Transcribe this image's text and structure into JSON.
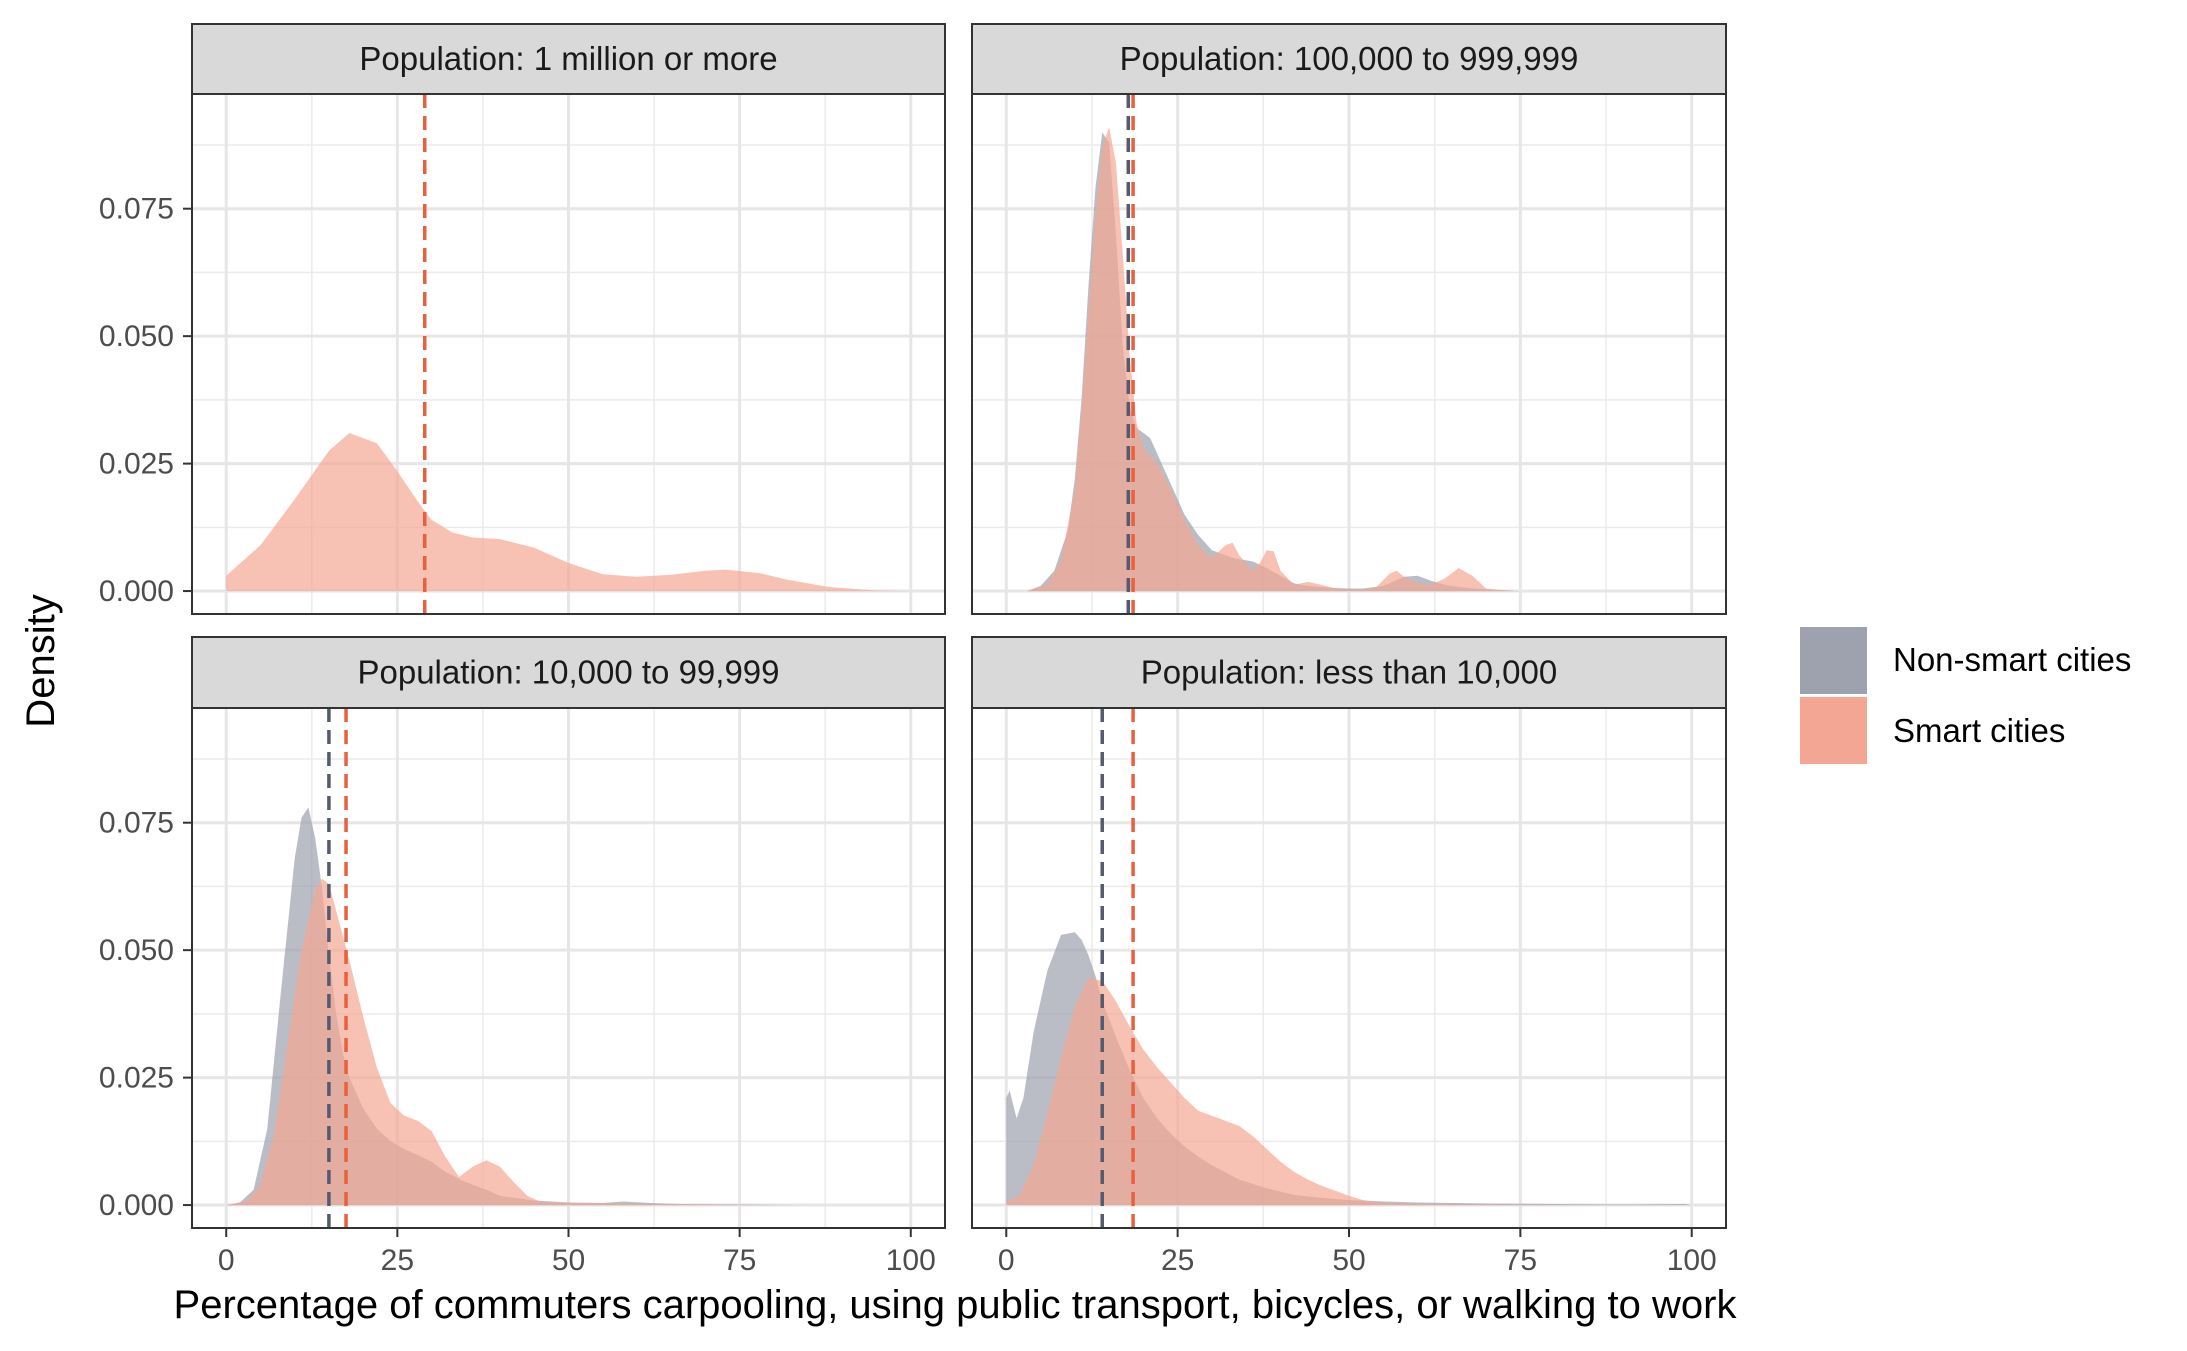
{
  "chart_data": {
    "type": "area",
    "xlabel": "Percentage of commuters carpooling, using public transport, bicycles, or walking to work",
    "ylabel": "Density",
    "xlim": [
      -5,
      105
    ],
    "ylim": [
      -0.0045,
      0.0975
    ],
    "x_ticks": [
      0,
      25,
      50,
      75,
      100
    ],
    "y_ticks": [
      0,
      0.025,
      0.05,
      0.075
    ],
    "x_tick_labels": [
      "0",
      "25",
      "50",
      "75",
      "100"
    ],
    "y_tick_labels": [
      "0.000",
      "0.025",
      "0.050",
      "0.075"
    ],
    "grid": true,
    "legend_position": "right",
    "legend": [
      {
        "key": "non_smart",
        "label": "Non-smart cities",
        "color": "#9ea1ae"
      },
      {
        "key": "smart",
        "label": "Smart cities",
        "color": "#f3a693"
      }
    ],
    "mean_line_colors": {
      "non_smart": "#555b6e",
      "smart": "#e8603c"
    },
    "panels": [
      {
        "title": "Population: 1 million or more",
        "smart_mean": 29,
        "non_smart_mean": null,
        "smart": {
          "x": [
            0,
            5,
            10,
            15,
            18,
            22,
            25,
            28,
            30,
            33,
            36,
            40,
            45,
            50,
            55,
            60,
            65,
            70,
            73,
            78,
            82,
            88,
            95,
            100
          ],
          "y": [
            0.003,
            0.009,
            0.018,
            0.0275,
            0.031,
            0.029,
            0.0235,
            0.0175,
            0.014,
            0.0115,
            0.0105,
            0.0102,
            0.0085,
            0.0055,
            0.0033,
            0.0028,
            0.0032,
            0.004,
            0.0042,
            0.0035,
            0.0022,
            0.0008,
            0.0001,
            0
          ]
        },
        "non_smart": null
      },
      {
        "title": "Population: 100,000 to 999,999",
        "smart_mean": 18.5,
        "non_smart_mean": 17.8,
        "smart": {
          "x": [
            3,
            6,
            8,
            10,
            11,
            12,
            13,
            14,
            15,
            16,
            17,
            18,
            19,
            20,
            22,
            24,
            26,
            28,
            30,
            32,
            33,
            34,
            36,
            37,
            38,
            39,
            40,
            42,
            44,
            46,
            48,
            50,
            52,
            54,
            56,
            57,
            58,
            60,
            62,
            64,
            66,
            68,
            70,
            74
          ],
          "y": [
            0,
            0.0012,
            0.006,
            0.02,
            0.036,
            0.055,
            0.074,
            0.087,
            0.091,
            0.084,
            0.066,
            0.046,
            0.033,
            0.028,
            0.025,
            0.02,
            0.014,
            0.009,
            0.0065,
            0.009,
            0.0095,
            0.007,
            0.004,
            0.0055,
            0.008,
            0.0078,
            0.004,
            0.0012,
            0.0018,
            0.0012,
            0.0005,
            0.0003,
            0.0003,
            0.0008,
            0.0035,
            0.004,
            0.0028,
            0.0015,
            0.0012,
            0.0025,
            0.0045,
            0.003,
            0.0005,
            0
          ]
        },
        "non_smart": {
          "x": [
            3,
            5,
            7,
            9,
            10,
            11,
            12,
            13,
            14,
            15,
            16,
            17,
            18,
            19,
            20,
            21,
            22,
            24,
            26,
            28,
            30,
            33,
            36,
            38,
            40,
            42,
            44,
            46,
            48,
            50,
            52,
            55,
            58,
            60,
            62,
            64,
            66,
            68,
            72,
            75
          ],
          "y": [
            0,
            0.001,
            0.004,
            0.012,
            0.022,
            0.038,
            0.06,
            0.079,
            0.09,
            0.088,
            0.07,
            0.048,
            0.036,
            0.032,
            0.031,
            0.03,
            0.027,
            0.021,
            0.015,
            0.011,
            0.008,
            0.0065,
            0.0058,
            0.0045,
            0.003,
            0.0015,
            0.001,
            0.0008,
            0.0006,
            0.0005,
            0.0005,
            0.001,
            0.0028,
            0.003,
            0.002,
            0.0012,
            0.0008,
            0.0005,
            0.0002,
            0
          ]
        }
      },
      {
        "title": "Population: 10,000 to 99,999",
        "smart_mean": 17.5,
        "non_smart_mean": 15,
        "smart": {
          "x": [
            0,
            3,
            5,
            7,
            9,
            11,
            13,
            14,
            15,
            16,
            17,
            18,
            20,
            22,
            24,
            26,
            28,
            30,
            32,
            34,
            36,
            38,
            40,
            42,
            44,
            46,
            50,
            55,
            60,
            70,
            80
          ],
          "y": [
            0,
            0.0008,
            0.004,
            0.014,
            0.032,
            0.05,
            0.062,
            0.064,
            0.063,
            0.058,
            0.053,
            0.048,
            0.037,
            0.027,
            0.02,
            0.0175,
            0.0165,
            0.0145,
            0.0095,
            0.0055,
            0.0075,
            0.0088,
            0.0075,
            0.0045,
            0.0018,
            0.0006,
            0.0004,
            0.0003,
            0.0002,
            0.0001,
            0
          ]
        },
        "non_smart": {
          "x": [
            0,
            2,
            4,
            6,
            8,
            10,
            11,
            12,
            13,
            14,
            15,
            16,
            17,
            18,
            20,
            22,
            24,
            26,
            28,
            30,
            32,
            35,
            38,
            40,
            45,
            50,
            55,
            58,
            62,
            66,
            75,
            85
          ],
          "y": [
            0,
            0.0005,
            0.003,
            0.015,
            0.042,
            0.068,
            0.076,
            0.078,
            0.072,
            0.062,
            0.049,
            0.038,
            0.03,
            0.025,
            0.019,
            0.015,
            0.0125,
            0.011,
            0.0098,
            0.0085,
            0.0065,
            0.0045,
            0.003,
            0.0018,
            0.0009,
            0.0005,
            0.0004,
            0.0007,
            0.0004,
            0.0002,
            0.0001,
            0
          ]
        }
      },
      {
        "title": "Population: less than 10,000",
        "smart_mean": 18.5,
        "non_smart_mean": 14,
        "smart": {
          "x": [
            0,
            2,
            4,
            6,
            8,
            10,
            12,
            14,
            16,
            18,
            20,
            22,
            24,
            26,
            28,
            30,
            32,
            34,
            36,
            38,
            40,
            42,
            44,
            46,
            48,
            50,
            52,
            55,
            60,
            70,
            80,
            90,
            100
          ],
          "y": [
            0.0005,
            0.002,
            0.008,
            0.018,
            0.029,
            0.039,
            0.0445,
            0.044,
            0.04,
            0.035,
            0.0305,
            0.027,
            0.024,
            0.021,
            0.0185,
            0.0175,
            0.0165,
            0.0155,
            0.0135,
            0.011,
            0.0085,
            0.0065,
            0.005,
            0.0038,
            0.0028,
            0.0018,
            0.001,
            0.0004,
            0.0002,
            0.0001,
            5e-05,
            2e-05,
            0
          ]
        },
        "non_smart": {
          "x": [
            0,
            0.5,
            1.5,
            2.5,
            4,
            6,
            8,
            10,
            11,
            12,
            13,
            14,
            16,
            18,
            20,
            22,
            24,
            26,
            28,
            30,
            34,
            38,
            42,
            46,
            50,
            55,
            60,
            70,
            80,
            90,
            99,
            100
          ],
          "y": [
            0.021,
            0.0225,
            0.017,
            0.021,
            0.034,
            0.046,
            0.053,
            0.0535,
            0.052,
            0.049,
            0.045,
            0.04,
            0.033,
            0.0265,
            0.021,
            0.017,
            0.014,
            0.0115,
            0.0095,
            0.0078,
            0.005,
            0.0033,
            0.002,
            0.0014,
            0.001,
            0.0007,
            0.0005,
            0.0003,
            0.0002,
            0.0001,
            0.0002,
            0
          ]
        }
      }
    ]
  }
}
